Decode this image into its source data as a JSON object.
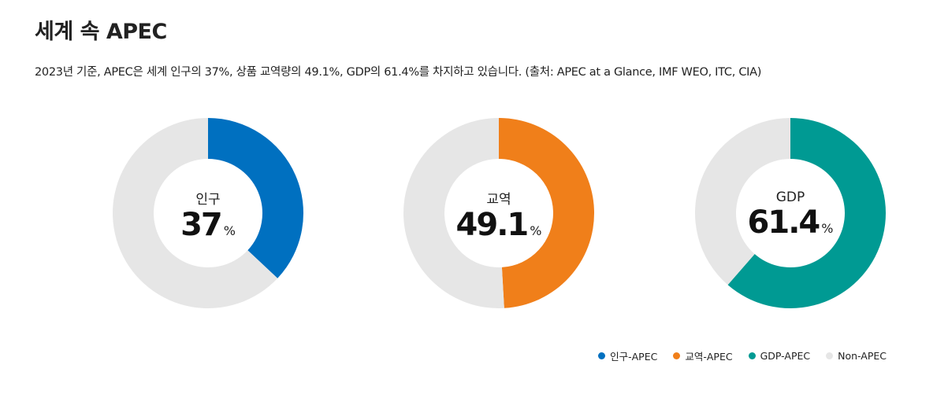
{
  "header": {
    "title": "세계 속 APEC",
    "subtitle": "2023년 기준, APEC은 세계 인구의 37%, 상품 교역량의 49.1%, GDP의 61.4%를 차지하고 있습니다. (출처: APEC at a Glance, IMF WEO, ITC, CIA)"
  },
  "chart_data": [
    {
      "type": "pie",
      "center_label": "인구",
      "center_value": "37",
      "unit": "%",
      "slices": [
        {
          "label": "인구-APEC",
          "value": 37,
          "color": "#0070c0"
        },
        {
          "label": "Non-APEC",
          "value": 63,
          "color": "#e6e6e6"
        }
      ]
    },
    {
      "type": "pie",
      "center_label": "교역",
      "center_value": "49.1",
      "unit": "%",
      "slices": [
        {
          "label": "교역-APEC",
          "value": 49.1,
          "color": "#f07f1a"
        },
        {
          "label": "Non-APEC",
          "value": 50.9,
          "color": "#e6e6e6"
        }
      ]
    },
    {
      "type": "pie",
      "center_label": "GDP",
      "center_value": "61.4",
      "unit": "%",
      "slices": [
        {
          "label": "GDP-APEC",
          "value": 61.4,
          "color": "#009a93"
        },
        {
          "label": "Non-APEC",
          "value": 38.6,
          "color": "#e6e6e6"
        }
      ]
    }
  ],
  "legend": {
    "items": [
      {
        "label": "인구-APEC",
        "color": "#0070c0"
      },
      {
        "label": "교역-APEC",
        "color": "#f07f1a"
      },
      {
        "label": "GDP-APEC",
        "color": "#009a93"
      },
      {
        "label": "Non-APEC",
        "color": "#e6e6e6"
      }
    ]
  }
}
